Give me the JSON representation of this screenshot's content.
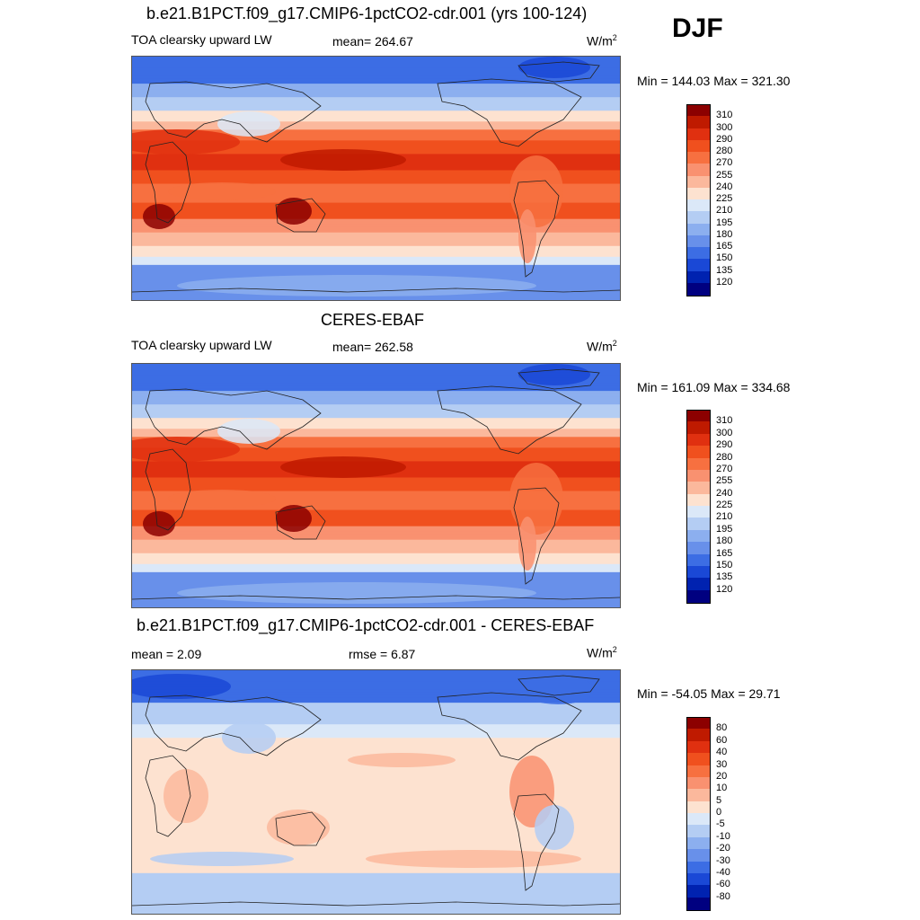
{
  "season": "DJF",
  "units_prefix": "W/m",
  "units_sup": "2",
  "panels": [
    {
      "title": "b.e21.B1PCT.f09_g17.CMIP6-1pctCO2-cdr.001 (yrs 100-124)",
      "left_label": "TOA clearsky upward LW",
      "mean_text": "mean= 264.67",
      "minmax": "Min = 144.03 Max = 321.30",
      "scale": "abs"
    },
    {
      "title": "CERES-EBAF",
      "left_label": "TOA clearsky upward LW",
      "mean_text": "mean= 262.58",
      "minmax": "Min = 161.09 Max = 334.68",
      "scale": "abs"
    },
    {
      "title": "b.e21.B1PCT.f09_g17.CMIP6-1pctCO2-cdr.001 - CERES-EBAF",
      "left_label": "mean =   2.09",
      "mean_text": "rmse =   6.87",
      "minmax": "Min = -54.05 Max =  29.71",
      "scale": "diff"
    }
  ],
  "chart_data": [
    {
      "type": "heatmap",
      "title": "b.e21.B1PCT.f09_g17.CMIP6-1pctCO2-cdr.001 (yrs 100-124)",
      "variable": "TOA clearsky upward LW",
      "mean": 264.67,
      "min": 144.03,
      "max": 321.3,
      "colorbar_levels": [
        310,
        300,
        290,
        280,
        270,
        255,
        240,
        225,
        210,
        195,
        180,
        165,
        150,
        135,
        120
      ]
    },
    {
      "type": "heatmap",
      "title": "CERES-EBAF",
      "variable": "TOA clearsky upward LW",
      "mean": 262.58,
      "min": 161.09,
      "max": 334.68,
      "colorbar_levels": [
        310,
        300,
        290,
        280,
        270,
        255,
        240,
        225,
        210,
        195,
        180,
        165,
        150,
        135,
        120
      ]
    },
    {
      "type": "heatmap",
      "title": "b.e21.B1PCT.f09_g17.CMIP6-1pctCO2-cdr.001 - CERES-EBAF",
      "mean": 2.09,
      "rmse": 6.87,
      "min": -54.05,
      "max": 29.71,
      "colorbar_levels": [
        80,
        60,
        40,
        30,
        20,
        10,
        5,
        0,
        -5,
        -10,
        -20,
        -30,
        -40,
        -60,
        -80
      ]
    }
  ],
  "colorbar_colors": [
    "#8c0000",
    "#bf1a00",
    "#e03010",
    "#f0501e",
    "#f77040",
    "#f99170",
    "#fbb89c",
    "#fde2d0",
    "#dbe8f8",
    "#b4cdf3",
    "#8cafef",
    "#6890ea",
    "#3c6de4",
    "#1a48d6",
    "#0022b0",
    "#000080"
  ]
}
